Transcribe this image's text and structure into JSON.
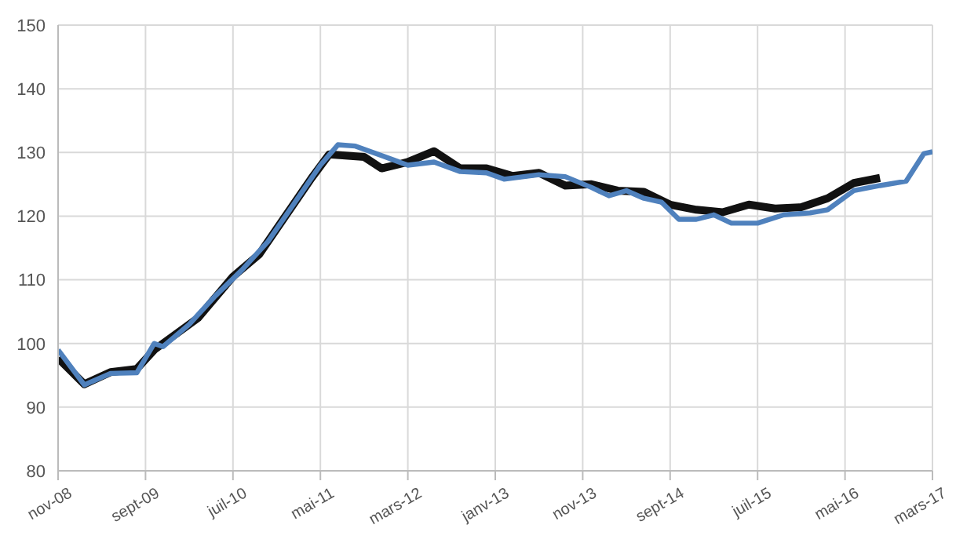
{
  "chart_data": {
    "type": "line",
    "xlim": [
      "2008-11",
      "2017-03"
    ],
    "xticks": [
      {
        "value": "2008-11",
        "label": "nov-08"
      },
      {
        "value": "2009-09",
        "label": "sept-09"
      },
      {
        "value": "2010-07",
        "label": "juil-10"
      },
      {
        "value": "2011-05",
        "label": "mai-11"
      },
      {
        "value": "2012-03",
        "label": "mars-12"
      },
      {
        "value": "2013-01",
        "label": "janv-13"
      },
      {
        "value": "2013-11",
        "label": "nov-13"
      },
      {
        "value": "2014-09",
        "label": "sept-14"
      },
      {
        "value": "2015-07",
        "label": "juil-15"
      },
      {
        "value": "2016-05",
        "label": "mai-16"
      },
      {
        "value": "2017-03",
        "label": "mars-17"
      }
    ],
    "ylim": [
      80,
      150
    ],
    "yticks": [
      80,
      90,
      100,
      110,
      120,
      130,
      140,
      150
    ],
    "grid": true,
    "legend": false,
    "marker": "none",
    "line_style": "solid",
    "series": [
      {
        "color": "#111111",
        "x": [
          "2008-11",
          "2009-02",
          "2009-05",
          "2009-08",
          "2009-10",
          "2010-01",
          "2010-03",
          "2010-07",
          "2010-10",
          "2011-01",
          "2011-04",
          "2011-06",
          "2011-10",
          "2011-12",
          "2012-03",
          "2012-06",
          "2012-09",
          "2012-12",
          "2013-03",
          "2013-06",
          "2013-09",
          "2013-12",
          "2014-03",
          "2014-06",
          "2014-09",
          "2014-12",
          "2015-03",
          "2015-06",
          "2015-09",
          "2015-12",
          "2016-03",
          "2016-06",
          "2016-09"
        ],
        "values": [
          97.7,
          93.6,
          95.5,
          96,
          99,
          102,
          104,
          110.5,
          114,
          120,
          126,
          129.7,
          129.3,
          127.5,
          128.5,
          130.2,
          127.5,
          127.5,
          126.3,
          126.8,
          124.8,
          125,
          124,
          123.8,
          121.8,
          121,
          120.6,
          121.8,
          121.2,
          121.4,
          122.8,
          125.2,
          126
        ]
      },
      {
        "color": "#4f81bd",
        "x": [
          "2008-11",
          "2009-02",
          "2009-05",
          "2009-08",
          "2009-10",
          "2009-11",
          "2010-02",
          "2010-05",
          "2010-08",
          "2010-11",
          "2011-02",
          "2011-05",
          "2011-07",
          "2011-09",
          "2011-12",
          "2012-03",
          "2012-06",
          "2012-09",
          "2012-12",
          "2013-02",
          "2013-06",
          "2013-09",
          "2013-12",
          "2014-02",
          "2014-04",
          "2014-06",
          "2014-08",
          "2014-10",
          "2014-12",
          "2015-02",
          "2015-04",
          "2015-07",
          "2015-10",
          "2016-01",
          "2016-03",
          "2016-06",
          "2016-09",
          "2016-12",
          "2017-02",
          "2017-03"
        ],
        "values": [
          99,
          93.5,
          95.3,
          95.4,
          100,
          99.5,
          103,
          107.5,
          111.5,
          116,
          122,
          128,
          131.2,
          131,
          129.5,
          128,
          128.5,
          127,
          126.8,
          125.8,
          126.5,
          126.2,
          124.5,
          123.2,
          124,
          122.8,
          122.2,
          119.5,
          119.5,
          120.2,
          118.9,
          118.9,
          120.2,
          120.5,
          121,
          124,
          124.8,
          125.5,
          129.8,
          130.1
        ]
      }
    ]
  }
}
